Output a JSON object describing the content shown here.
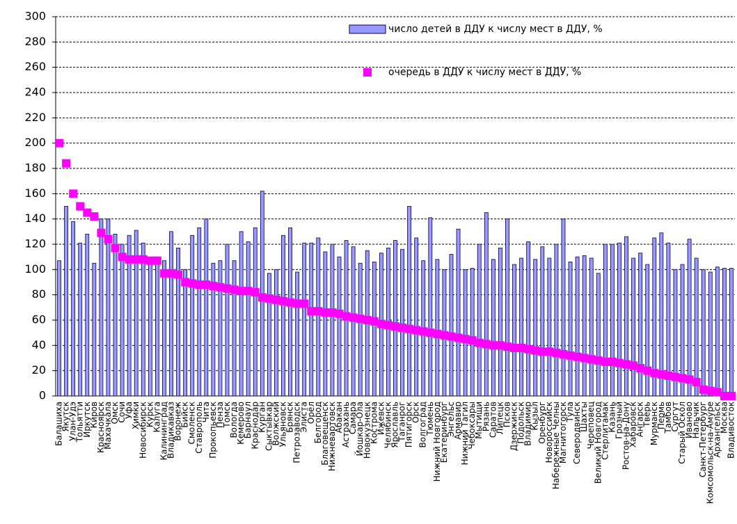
{
  "chart_data": {
    "type": "bar-scatter",
    "categories": [
      "Балашиха",
      "Якутск",
      "Улан-Удэ",
      "Тольятти",
      "Иркутск",
      "Киров",
      "Красноярск",
      "Махачкала",
      "Омск",
      "Сочи",
      "Уфа",
      "Химки",
      "Новосибирск",
      "Курск",
      "Калуга",
      "Калининград",
      "Владикавказ",
      "Воронеж",
      "Бийск",
      "Смоленск",
      "Ставрополь",
      "Чита",
      "Прокопьевск",
      "Пенза",
      "Томск",
      "Вологда",
      "Кемерово",
      "Барнаул",
      "Краснодар",
      "Курган",
      "Сыктывкар",
      "Волжский",
      "Ульяновск",
      "Брянск",
      "Петрозаводск",
      "Элиста",
      "Орёл",
      "Белгород",
      "Благовещенск",
      "Нижневартовск",
      "Абакан",
      "Астрахань",
      "Самара",
      "Йошкар-Ола",
      "Новокузнецк",
      "Кострома",
      "Ижевск",
      "Челябинск",
      "Ярославль",
      "Таганрог",
      "Пятигорск",
      "Орск",
      "Волгоград",
      "Тюмень",
      "Нижний Новгород",
      "Екатеринбург",
      "Энгельс",
      "Армавир",
      "Нижний Тагил",
      "Чебоксары",
      "Мытищи",
      "Рязань",
      "Саратов",
      "Липецк",
      "Псков",
      "Дзержинск",
      "Подольск",
      "Владимир",
      "Кызыл",
      "Оренбург",
      "Новороссийск",
      "Набережные Челны",
      "Магнитогорск",
      "Тула",
      "Северодвинск",
      "Шахты",
      "Череповец",
      "Великий Новгород",
      "Стерлитамак",
      "Казань",
      "Грозный",
      "Ростов-на-Дону",
      "Хабаровск",
      "Ангарск",
      "Тверь",
      "Мурманск",
      "Пермь",
      "Тамбов",
      "Сургут",
      "Старый Оскол",
      "Иваново",
      "Нальчик",
      "Санкт-Петербург",
      "Комсомольск-на-Амуре",
      "Архангельск",
      "Москва",
      "Владивосток"
    ],
    "series": [
      {
        "name": "число детей в ДДУ к числу мест в ДДУ, %",
        "kind": "bar",
        "color": "#9999ff",
        "values": [
          107,
          150,
          138,
          121,
          128,
          105,
          140,
          140,
          128,
          120,
          127,
          131,
          121,
          108,
          110,
          107,
          130,
          117,
          100,
          127,
          133,
          140,
          105,
          107,
          120,
          107,
          130,
          122,
          133,
          162,
          97,
          100,
          127,
          133,
          98,
          121,
          121,
          125,
          114,
          120,
          110,
          123,
          118,
          105,
          115,
          106,
          113,
          117,
          123,
          116,
          150,
          125,
          107,
          141,
          108,
          100,
          112,
          132,
          100,
          101,
          120,
          145,
          108,
          117,
          140,
          104,
          109,
          122,
          108,
          118,
          109,
          120,
          140,
          106,
          110,
          111,
          109,
          97,
          120,
          120,
          121,
          126,
          109,
          113,
          104,
          125,
          129,
          121,
          100,
          104,
          124,
          109,
          100,
          98,
          102,
          101,
          101
        ]
      },
      {
        "name": "очередь в ДДУ к числу мест в ДДУ, %",
        "kind": "scatter",
        "color": "#ff00ff",
        "values": [
          200,
          184,
          160,
          150,
          145,
          142,
          129,
          124,
          117,
          110,
          108,
          108,
          108,
          107,
          107,
          97,
          97,
          96,
          90,
          89,
          88,
          88,
          87,
          86,
          85,
          84,
          83,
          83,
          82,
          78,
          77,
          76,
          75,
          74,
          73,
          73,
          67,
          67,
          66,
          66,
          65,
          63,
          62,
          61,
          60,
          59,
          57,
          56,
          55,
          54,
          53,
          52,
          51,
          50,
          49,
          48,
          47,
          46,
          45,
          44,
          42,
          41,
          40,
          40,
          39,
          38,
          38,
          37,
          36,
          35,
          35,
          34,
          33,
          32,
          31,
          30,
          29,
          28,
          27,
          27,
          26,
          25,
          24,
          22,
          20,
          18,
          17,
          16,
          15,
          14,
          13,
          11,
          5,
          4,
          3,
          0,
          0
        ]
      }
    ],
    "ylim": [
      0,
      300
    ],
    "yticks": [
      0,
      20,
      40,
      60,
      80,
      100,
      120,
      140,
      160,
      180,
      200,
      220,
      240,
      260,
      280,
      300
    ],
    "grid": true,
    "legend": "top-right"
  }
}
